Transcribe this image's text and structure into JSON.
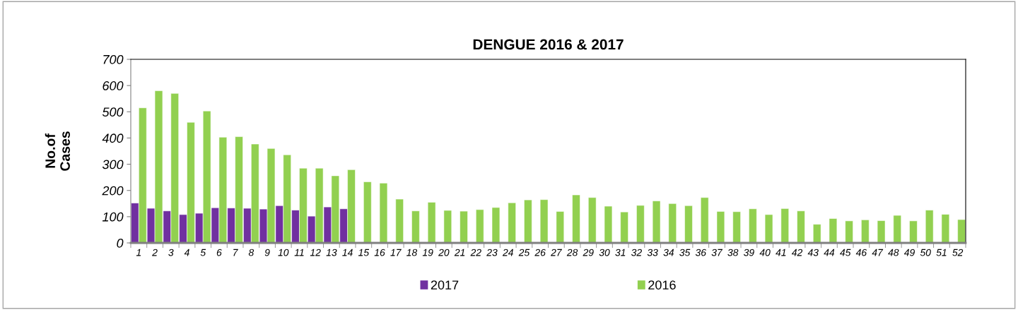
{
  "chart_data": {
    "type": "bar",
    "title": "DENGUE 2016 & 2017",
    "ylabel": "No.of\nCases",
    "categories": [
      "1",
      "2",
      "3",
      "4",
      "5",
      "6",
      "7",
      "8",
      "9",
      "10",
      "11",
      "12",
      "13",
      "14",
      "15",
      "16",
      "17",
      "18",
      "19",
      "20",
      "21",
      "22",
      "23",
      "24",
      "25",
      "26",
      "27",
      "28",
      "29",
      "30",
      "31",
      "32",
      "33",
      "34",
      "35",
      "36",
      "37",
      "38",
      "39",
      "40",
      "41",
      "42",
      "43",
      "44",
      "45",
      "46",
      "47",
      "48",
      "49",
      "50",
      "51",
      "52"
    ],
    "series": [
      {
        "name": "2017",
        "color": "#7030a0",
        "values": [
          152,
          132,
          122,
          108,
          113,
          134,
          133,
          132,
          129,
          142,
          125,
          102,
          137,
          130,
          null,
          null,
          null,
          null,
          null,
          null,
          null,
          null,
          null,
          null,
          null,
          null,
          null,
          null,
          null,
          null,
          null,
          null,
          null,
          null,
          null,
          null,
          null,
          null,
          null,
          null,
          null,
          null,
          null,
          null,
          null,
          null,
          null,
          null,
          null,
          null,
          null,
          null
        ]
      },
      {
        "name": "2016",
        "color": "#92d050",
        "values": [
          515,
          580,
          570,
          460,
          503,
          403,
          405,
          377,
          360,
          336,
          285,
          285,
          256,
          279,
          233,
          228,
          167,
          122,
          155,
          124,
          121,
          127,
          135,
          153,
          164,
          165,
          120,
          183,
          173,
          140,
          118,
          143,
          160,
          150,
          142,
          173,
          120,
          119,
          130,
          108,
          131,
          122,
          71,
          93,
          84,
          88,
          85,
          105,
          84,
          125,
          109,
          89
        ]
      }
    ],
    "ylim": [
      0,
      700
    ],
    "yticks": [
      0,
      100,
      200,
      300,
      400,
      500,
      600,
      700
    ],
    "grid": false,
    "legend": "bottom"
  }
}
